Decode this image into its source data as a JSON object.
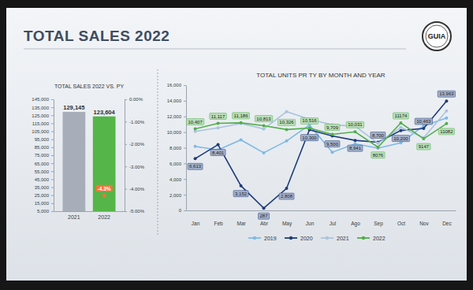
{
  "slide": {
    "title": "TOTAL SALES 2022",
    "logo": "GUIA"
  },
  "chart_data": [
    {
      "type": "bar",
      "title": "TOTAL SALES 2022 VS. PY",
      "categories": [
        "2021",
        "2022"
      ],
      "series": [
        {
          "values": [
            129145,
            123604
          ],
          "value_labels": [
            "129,145",
            "123,604"
          ],
          "colors": [
            "#a7adb9",
            "#55b548"
          ],
          "data_labels": true
        },
        {
          "type": "scatter",
          "axis": "y2",
          "values": [
            null,
            -4.3
          ],
          "value_labels": [
            null,
            "-4.3%"
          ],
          "color": "#f0773a",
          "marker": "square",
          "data_labels": true
        }
      ],
      "ylim": [
        5000,
        145000
      ],
      "yticks": [
        {
          "value": 5000,
          "label": "5,000"
        },
        {
          "value": 15000,
          "label": "15,000"
        },
        {
          "value": 25000,
          "label": "25,000"
        },
        {
          "value": 35000,
          "label": "35,000"
        },
        {
          "value": 45000,
          "label": "45,000"
        },
        {
          "value": 55000,
          "label": "55,000"
        },
        {
          "value": 65000,
          "label": "65,000"
        },
        {
          "value": 75000,
          "label": "75,000"
        },
        {
          "value": 85000,
          "label": "85,000"
        },
        {
          "value": 95000,
          "label": "95,000"
        },
        {
          "value": 105000,
          "label": "105,000"
        },
        {
          "value": 115000,
          "label": "115,000"
        },
        {
          "value": 125000,
          "label": "125,000"
        },
        {
          "value": 135000,
          "label": "135,000"
        },
        {
          "value": 145000,
          "label": "145,000"
        }
      ],
      "y2lim": [
        -5,
        0
      ],
      "y2ticks": [
        {
          "value": 0,
          "label": "0.00%"
        },
        {
          "value": -1,
          "label": "-1.00%"
        },
        {
          "value": -2,
          "label": "-2.00%"
        },
        {
          "value": -3,
          "label": "-3.00%"
        },
        {
          "value": -4,
          "label": "-4.00%"
        },
        {
          "value": -5,
          "label": "-5.00%"
        }
      ],
      "grid": false
    },
    {
      "type": "line",
      "title": "TOTAL UNITS PR TY BY MONTH AND YEAR",
      "categories": [
        "Jan",
        "Feb",
        "Mar",
        "Abr",
        "May",
        "Jun",
        "Jul",
        "Ago",
        "Sep",
        "Oct",
        "Nov",
        "Dec"
      ],
      "series": [
        {
          "name": "2019",
          "color": "#7db9e8",
          "marker": "circle",
          "data_labels": false,
          "values": [
            8168,
            7721,
            9007,
            7351,
            8869,
            10900,
            7431,
            8500,
            7946,
            8628,
            10800,
            11809
          ]
        },
        {
          "name": "2020",
          "color": "#1f3d7a",
          "marker": "circle",
          "data_labels": true,
          "values": [
            6613,
            8401,
            3152,
            287,
            2808,
            10300,
            9500,
            8941,
            8700,
            10200,
            10463,
            13963
          ],
          "value_labels": [
            "6,613",
            "8,401",
            "3,152",
            "287",
            "2,808",
            "10,300",
            "9,500",
            "8,941",
            "8,700",
            "10,200",
            "10,463",
            "13,963"
          ]
        },
        {
          "name": "2021",
          "color": "#a9c4de",
          "marker": "circle",
          "data_labels": false,
          "values": [
            10085,
            10548,
            11097,
            10400,
            12606,
            11638,
            10935,
            10755,
            8570,
            10600,
            9281,
            12697
          ]
        },
        {
          "name": "2022",
          "color": "#4fae4a",
          "marker": "circle",
          "data_labels": true,
          "values": [
            10407,
            11117,
            11186,
            10813,
            10326,
            10516,
            9709,
            10031,
            8076,
            11174,
            9147,
            11082
          ],
          "value_labels": [
            "10,407",
            "11,117",
            "11,186",
            "10,813",
            "10,326",
            "10,516",
            "9,709",
            "10,031",
            "8076",
            "11174",
            "9147",
            "11082"
          ]
        }
      ],
      "ylim": [
        0,
        16000
      ],
      "yticks": [
        0,
        {
          "value": 2000,
          "label": "2,000"
        },
        {
          "value": 4000,
          "label": "4,000"
        },
        {
          "value": 6000,
          "label": "6,000"
        },
        {
          "value": 8000,
          "label": "8,000"
        },
        {
          "value": 10000,
          "label": "10,000"
        },
        {
          "value": 12000,
          "label": "12,000"
        },
        {
          "value": 14000,
          "label": "14,000"
        },
        {
          "value": 16000,
          "label": "16,000"
        }
      ],
      "grid": false,
      "legend": "bottom"
    }
  ]
}
